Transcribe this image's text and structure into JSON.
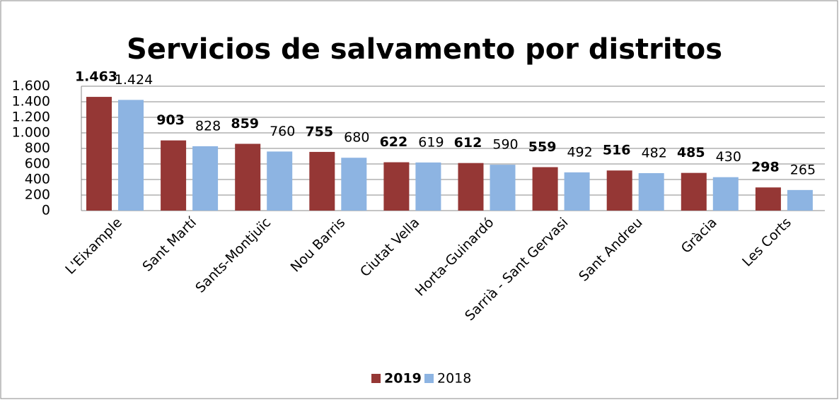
{
  "chart_data": {
    "type": "bar",
    "title": "Servicios de salvamento por distritos",
    "categories": [
      "L'Eixample",
      "Sant Martí",
      "Sants-Montjuïc",
      "Nou Barris",
      "Ciutat Vella",
      "Horta-Guinardó",
      "Sarrià - Sant Gervasi",
      "Sant Andreu",
      "Gràcia",
      "Les Corts"
    ],
    "series": [
      {
        "name": "2019",
        "color": "#953735",
        "values": [
          1463,
          903,
          859,
          755,
          622,
          612,
          559,
          516,
          485,
          298
        ],
        "value_labels": [
          "1.463",
          "903",
          "859",
          "755",
          "622",
          "612",
          "559",
          "516",
          "485",
          "298"
        ]
      },
      {
        "name": "2018",
        "color": "#8db4e2",
        "values": [
          1424,
          828,
          760,
          680,
          619,
          590,
          492,
          482,
          430,
          265
        ],
        "value_labels": [
          "1.424",
          "828",
          "760",
          "680",
          "619",
          "590",
          "492",
          "482",
          "430",
          "265"
        ]
      }
    ],
    "ylim": [
      0,
      1600
    ],
    "yticks": [
      0,
      200,
      400,
      600,
      800,
      {
        "value": 1000,
        "label": "1.000"
      },
      {
        "value": 1200,
        "label": "1.200"
      },
      {
        "value": 1400,
        "label": "1.400"
      },
      {
        "value": 1600,
        "label": "1.600"
      }
    ],
    "grid": true,
    "legend": "bottom"
  }
}
